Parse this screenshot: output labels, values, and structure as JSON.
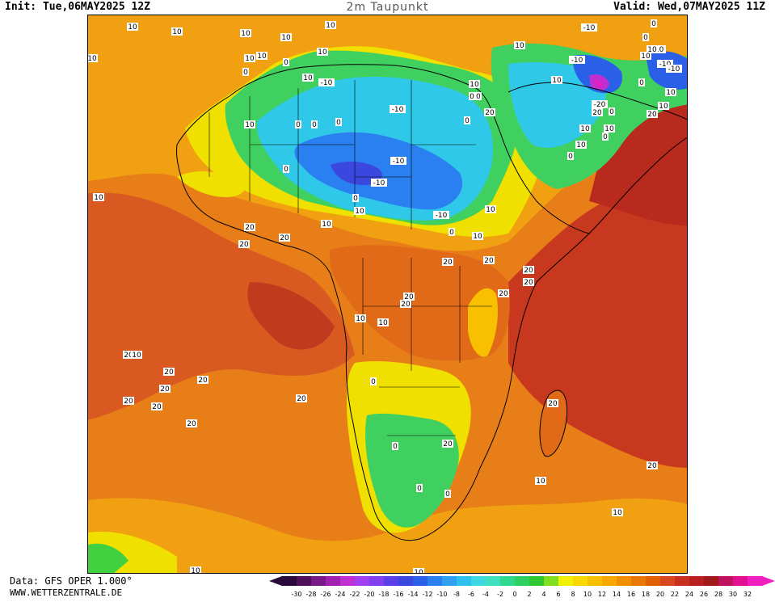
{
  "header": {
    "init": "Init: Tue,06MAY2025 12Z",
    "title": "2m Taupunkt",
    "valid": "Valid: Wed,07MAY2025 11Z"
  },
  "footer": {
    "data_source": "Data: GFS OPER 1.000°",
    "website": "WWW.WETTERZENTRALE.DE"
  },
  "legend": {
    "ticks": [
      "-30",
      "-28",
      "-26",
      "-24",
      "-22",
      "-20",
      "-18",
      "-16",
      "-14",
      "-12",
      "-10",
      "-8",
      "-6",
      "-4",
      "-2",
      "0",
      "2",
      "4",
      "6",
      "8",
      "10",
      "12",
      "14",
      "16",
      "18",
      "20",
      "22",
      "24",
      "26",
      "28",
      "30",
      "32"
    ],
    "colors": [
      "#2a0a3a",
      "#50105a",
      "#7a1a8a",
      "#a020b0",
      "#c030d0",
      "#a040f0",
      "#8040f0",
      "#5a40e8",
      "#3a48e0",
      "#2a60e8",
      "#2a80f0",
      "#30a0f0",
      "#30c0f0",
      "#40d8e0",
      "#40e0c0",
      "#30d890",
      "#30d060",
      "#30c830",
      "#80e020",
      "#f0f000",
      "#f8d800",
      "#f8c000",
      "#f8a800",
      "#f09000",
      "#e87800",
      "#e06000",
      "#d84820",
      "#c83020",
      "#b82020",
      "#a01818",
      "#c01060",
      "#e01090",
      "#f020c0"
    ]
  },
  "map": {
    "labels": [
      {
        "t": "10"
      },
      {
        "t": "10"
      },
      {
        "t": "10"
      },
      {
        "t": "10"
      },
      {
        "t": "10"
      },
      {
        "t": "10"
      },
      {
        "t": "10"
      },
      {
        "t": "10"
      },
      {
        "t": "0"
      },
      {
        "t": "0"
      },
      {
        "t": "10"
      },
      {
        "t": "10"
      },
      {
        "t": "10"
      },
      {
        "t": "10"
      },
      {
        "t": "-10"
      },
      {
        "t": "-10"
      },
      {
        "t": "0"
      },
      {
        "t": "0"
      },
      {
        "t": "0"
      },
      {
        "t": "0"
      },
      {
        "t": "10"
      },
      {
        "t": "-10"
      },
      {
        "t": "-10"
      },
      {
        "t": "-10"
      },
      {
        "t": "0"
      },
      {
        "t": "10"
      },
      {
        "t": "0"
      },
      {
        "t": "20"
      },
      {
        "t": "10"
      },
      {
        "t": "0"
      },
      {
        "t": "20"
      },
      {
        "t": "20"
      },
      {
        "t": "20"
      },
      {
        "t": "10"
      },
      {
        "t": "10"
      },
      {
        "t": "0"
      },
      {
        "t": "10"
      },
      {
        "t": "20"
      },
      {
        "t": "20"
      },
      {
        "t": "20"
      },
      {
        "t": "20"
      },
      {
        "t": "20"
      },
      {
        "t": "20"
      },
      {
        "t": "20"
      },
      {
        "t": "10"
      },
      {
        "t": "10"
      },
      {
        "t": "0"
      },
      {
        "t": "0"
      },
      {
        "t": "0"
      },
      {
        "t": "0"
      },
      {
        "t": "20"
      },
      {
        "t": "10"
      },
      {
        "t": "20"
      },
      {
        "t": "20"
      },
      {
        "t": "20"
      },
      {
        "t": "20"
      },
      {
        "t": "20"
      },
      {
        "t": "20"
      },
      {
        "t": "20"
      },
      {
        "t": "20"
      },
      {
        "t": "20"
      },
      {
        "t": "10"
      },
      {
        "t": "20"
      },
      {
        "t": "10"
      },
      {
        "t": "10"
      },
      {
        "t": "10"
      },
      {
        "t": "-10"
      },
      {
        "t": "-10"
      },
      {
        "t": "-20"
      },
      {
        "t": "20"
      },
      {
        "t": "10"
      },
      {
        "t": "10"
      },
      {
        "t": "0"
      },
      {
        "t": "0"
      },
      {
        "t": "10"
      },
      {
        "t": "10"
      },
      {
        "t": "0"
      },
      {
        "t": "0"
      },
      {
        "t": "10"
      },
      {
        "t": "-10"
      },
      {
        "t": "-10"
      },
      {
        "t": "10"
      },
      {
        "t": "20"
      },
      {
        "t": "10"
      },
      {
        "t": "-10"
      },
      {
        "t": "10"
      },
      {
        "t": "0"
      },
      {
        "t": "10"
      },
      {
        "t": "0"
      }
    ]
  }
}
